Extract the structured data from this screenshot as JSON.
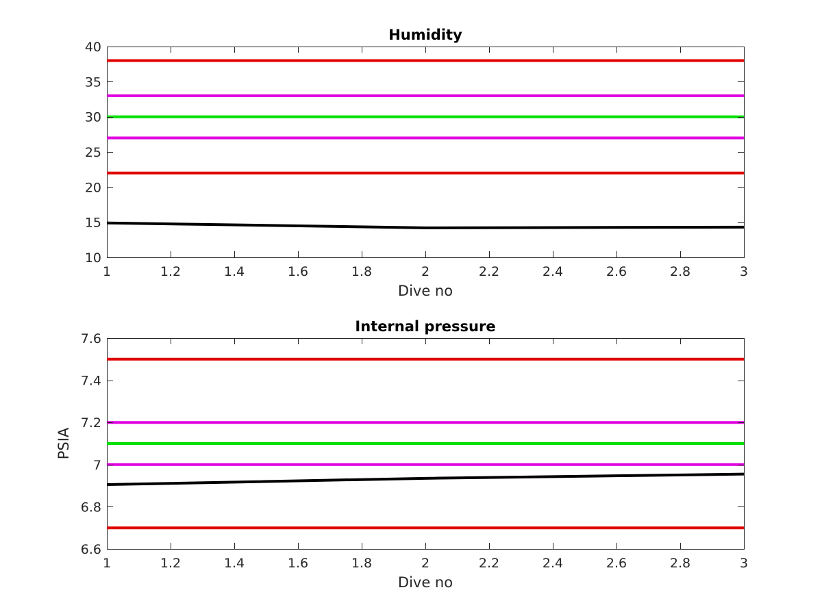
{
  "chart_data": [
    {
      "type": "line",
      "title": "Humidity",
      "xlabel": "Dive no",
      "ylabel": "",
      "xlim": [
        1,
        3
      ],
      "ylim": [
        10,
        40
      ],
      "xticks": [
        1,
        1.2,
        1.4,
        1.6,
        1.8,
        2,
        2.2,
        2.4,
        2.6,
        2.8,
        3
      ],
      "yticks": [
        10,
        15,
        20,
        25,
        30,
        35,
        40
      ],
      "grid": false,
      "series": [
        {
          "color": "#e00000",
          "x": [
            1,
            3
          ],
          "y": [
            38,
            38
          ]
        },
        {
          "color": "#e000e0",
          "x": [
            1,
            3
          ],
          "y": [
            33,
            33
          ]
        },
        {
          "color": "#00e000",
          "x": [
            1,
            3
          ],
          "y": [
            30,
            30
          ]
        },
        {
          "color": "#e000e0",
          "x": [
            1,
            3
          ],
          "y": [
            27,
            27
          ]
        },
        {
          "color": "#e00000",
          "x": [
            1,
            3
          ],
          "y": [
            22,
            22
          ]
        },
        {
          "color": "#000000",
          "x": [
            1,
            2,
            3
          ],
          "y": [
            14.9,
            14.2,
            14.3
          ]
        }
      ]
    },
    {
      "type": "line",
      "title": "Internal pressure",
      "xlabel": "Dive no",
      "ylabel": "PSIA",
      "xlim": [
        1,
        3
      ],
      "ylim": [
        6.6,
        7.6
      ],
      "xticks": [
        1,
        1.2,
        1.4,
        1.6,
        1.8,
        2,
        2.2,
        2.4,
        2.6,
        2.8,
        3
      ],
      "yticks": [
        6.6,
        6.8,
        7,
        7.2,
        7.4,
        7.6
      ],
      "grid": false,
      "series": [
        {
          "color": "#e00000",
          "x": [
            1,
            3
          ],
          "y": [
            7.5,
            7.5
          ]
        },
        {
          "color": "#e000e0",
          "x": [
            1,
            3
          ],
          "y": [
            7.2,
            7.2
          ]
        },
        {
          "color": "#00e000",
          "x": [
            1,
            3
          ],
          "y": [
            7.1,
            7.1
          ]
        },
        {
          "color": "#e000e0",
          "x": [
            1,
            3
          ],
          "y": [
            7.0,
            7.0
          ]
        },
        {
          "color": "#e00000",
          "x": [
            1,
            3
          ],
          "y": [
            6.7,
            6.7
          ]
        },
        {
          "color": "#000000",
          "x": [
            1,
            2,
            3
          ],
          "y": [
            6.905,
            6.935,
            6.955
          ]
        }
      ]
    }
  ]
}
